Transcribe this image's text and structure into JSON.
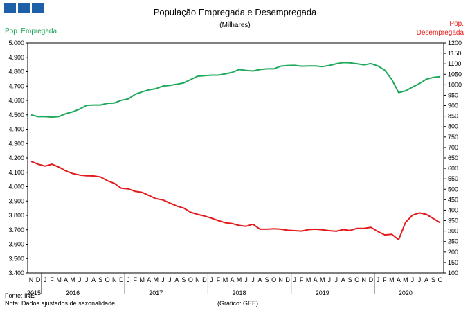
{
  "title": "População Empregada e Desempregada",
  "subtitle": "(Milhares)",
  "left_axis_label": "Pop. Empregada",
  "right_axis_label_line1": "Pop.",
  "right_axis_label_line2": "Desempregada",
  "source": "Fonte: INE",
  "note": "Nota: Dados ajustados de sazonalidade",
  "credit": "(Gráfico: GEE)",
  "colors": {
    "employed": "#1ea85a",
    "unemployed": "#e31a1c",
    "logo": "#1f5fa8"
  },
  "chart_data": {
    "type": "line",
    "title": "População Empregada e Desempregada",
    "subtitle": "(Milhares)",
    "grid": false,
    "y_left": {
      "label": "Pop. Empregada",
      "ylim": [
        3400,
        5000
      ],
      "ticks": [
        "3.400",
        "3.500",
        "3.600",
        "3.700",
        "3.800",
        "3.900",
        "4.000",
        "4.100",
        "4.200",
        "4.300",
        "4.400",
        "4.500",
        "4.600",
        "4.700",
        "4.800",
        "4.900",
        "5.000"
      ]
    },
    "y_right": {
      "label": "Pop. Desempregada",
      "ylim": [
        100,
        1200
      ],
      "ticks": [
        "100",
        "150",
        "200",
        "250",
        "300",
        "350",
        "400",
        "450",
        "500",
        "550",
        "600",
        "650",
        "700",
        "750",
        "800",
        "850",
        "900",
        "950",
        "1000",
        "1050",
        "1100",
        "1150",
        "1200"
      ]
    },
    "month_labels": [
      "N",
      "D",
      "J",
      "F",
      "M",
      "A",
      "M",
      "J",
      "J",
      "A",
      "S",
      "O",
      "N",
      "D",
      "J",
      "F",
      "M",
      "A",
      "M",
      "J",
      "J",
      "A",
      "S",
      "O",
      "N",
      "D",
      "J",
      "F",
      "M",
      "A",
      "M",
      "J",
      "J",
      "A",
      "S",
      "O",
      "N",
      "D",
      "J",
      "F",
      "M",
      "A",
      "M",
      "J",
      "J",
      "A",
      "S",
      "O",
      "N",
      "D",
      "J",
      "F",
      "M",
      "A",
      "M",
      "J",
      "J",
      "A",
      "S",
      "O"
    ],
    "year_labels": [
      {
        "label": "2015",
        "index": 0
      },
      {
        "label": "2016",
        "index": 6
      },
      {
        "label": "2017",
        "index": 18
      },
      {
        "label": "2018",
        "index": 30
      },
      {
        "label": "2019",
        "index": 42
      },
      {
        "label": "2020",
        "index": 54
      }
    ],
    "year_dividers": [
      1.5,
      13.5,
      25.5,
      37.5,
      49.5
    ],
    "series": [
      {
        "name": "Pop. Empregada",
        "axis": "left",
        "values": [
          4500,
          4487,
          4487,
          4484,
          4488,
          4508,
          4521,
          4540,
          4566,
          4568,
          4568,
          4580,
          4582,
          4601,
          4610,
          4643,
          4660,
          4674,
          4682,
          4700,
          4705,
          4713,
          4722,
          4745,
          4768,
          4772,
          4776,
          4776,
          4785,
          4795,
          4815,
          4808,
          4805,
          4815,
          4820,
          4820,
          4838,
          4843,
          4844,
          4838,
          4840,
          4840,
          4835,
          4843,
          4855,
          4863,
          4861,
          4855,
          4847,
          4856,
          4840,
          4810,
          4747,
          4655,
          4667,
          4693,
          4717,
          4748,
          4760,
          4765
        ]
      },
      {
        "name": "Pop. Desempregada",
        "axis": "right",
        "values": [
          633,
          620,
          611,
          620,
          606,
          588,
          575,
          568,
          565,
          564,
          559,
          541,
          528,
          505,
          502,
          490,
          485,
          470,
          455,
          449,
          434,
          420,
          410,
          390,
          380,
          372,
          362,
          350,
          340,
          336,
          327,
          323,
          333,
          309,
          309,
          311,
          309,
          304,
          302,
          300,
          307,
          309,
          306,
          302,
          299,
          307,
          303,
          313,
          313,
          318,
          298,
          282,
          285,
          259,
          342,
          376,
          387,
          380,
          360,
          340
        ]
      }
    ]
  }
}
